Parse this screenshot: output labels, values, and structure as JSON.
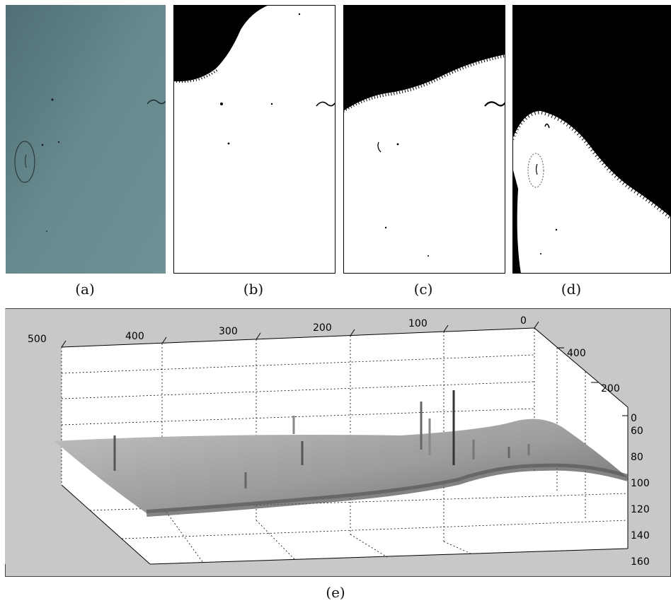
{
  "panels": [
    {
      "id": "a",
      "caption": "(a)"
    },
    {
      "id": "b",
      "caption": "(b)"
    },
    {
      "id": "c",
      "caption": "(c)"
    },
    {
      "id": "d",
      "caption": "(d)"
    }
  ],
  "figure_e": {
    "caption": "(e)",
    "top_axis_ticks": [
      "500",
      "400",
      "300",
      "200",
      "100",
      "0"
    ],
    "side_axis_ticks": [
      "400",
      "200",
      "0"
    ],
    "depth_axis_ticks": [
      "60",
      "80",
      "100",
      "120",
      "140",
      "160"
    ]
  },
  "colors": {
    "photo": "#5f8287",
    "background_panel": "#c8c8c8",
    "surface_light": "#b9b9b9",
    "surface_dark": "#6e6e6e"
  }
}
